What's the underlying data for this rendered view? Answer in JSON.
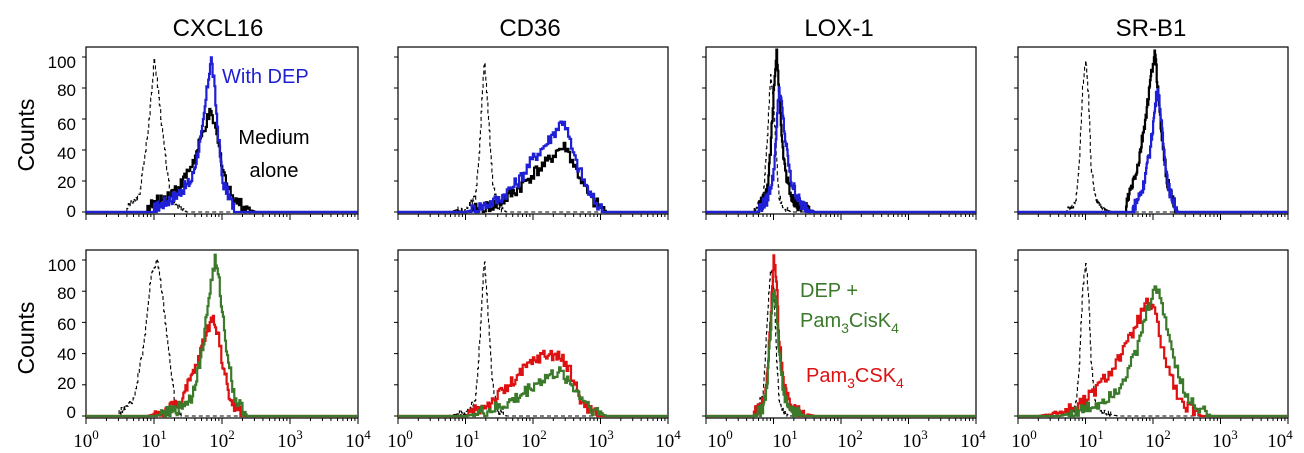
{
  "figure": {
    "column_titles": [
      "CXCL16",
      "CD36",
      "LOX-1",
      "SR-B1"
    ],
    "row_ylabels": [
      "Counts",
      "Counts"
    ],
    "x_tick_labels": [
      {
        "base": "10",
        "exp": "0"
      },
      {
        "base": "10",
        "exp": "1"
      },
      {
        "base": "10",
        "exp": "2"
      },
      {
        "base": "10",
        "exp": "3"
      },
      {
        "base": "10",
        "exp": "4"
      }
    ],
    "y_tick_labels": [
      "100",
      "80",
      "60",
      "40",
      "20",
      "0"
    ]
  },
  "annotations": {
    "with_dep": "With DEP",
    "medium_line1": "Medium",
    "medium_line2": "alone",
    "dep_line1": "DEP +",
    "pam3cisk4": {
      "a": "Pam",
      "b": "3",
      "c": "CisK",
      "d": "4"
    },
    "pam3csk4": {
      "a": "Pam",
      "b": "3",
      "c": "CSK",
      "d": "4"
    }
  },
  "colors": {
    "isotype": "#000000",
    "medium": "#000000",
    "dep": "#1f1fd6",
    "pam3csk4": "#dd1111",
    "dep_pam3cisk4": "#3a7a2a"
  },
  "chart_data": [
    {
      "type": "line",
      "row": 0,
      "col": 0,
      "title": "CXCL16",
      "ylabel": "Counts",
      "x_scale": "log",
      "xlim": [
        1,
        10000
      ],
      "ylim": [
        0,
        100
      ],
      "series": [
        {
          "key": "isotype",
          "style": "dashed",
          "x": [
            4,
            6,
            8,
            10,
            11,
            13,
            16,
            20,
            30
          ],
          "y": [
            3,
            10,
            50,
            98,
            85,
            55,
            20,
            5,
            0
          ]
        },
        {
          "key": "medium",
          "x": [
            8,
            15,
            25,
            40,
            55,
            65,
            75,
            90,
            120,
            200,
            300
          ],
          "y": [
            3,
            10,
            18,
            35,
            55,
            63,
            58,
            40,
            15,
            3,
            0
          ]
        },
        {
          "key": "dep",
          "x": [
            10,
            20,
            35,
            50,
            60,
            68,
            75,
            85,
            100,
            150
          ],
          "y": [
            2,
            10,
            20,
            50,
            80,
            100,
            85,
            55,
            20,
            2
          ]
        }
      ]
    },
    {
      "type": "line",
      "row": 0,
      "col": 1,
      "title": "CD36",
      "xlim": [
        1,
        10000
      ],
      "ylim": [
        0,
        100
      ],
      "series": [
        {
          "key": "isotype",
          "style": "dashed",
          "x": [
            5,
            10,
            14,
            16,
            18,
            19,
            21,
            25,
            30,
            40
          ],
          "y": [
            0,
            2,
            10,
            40,
            85,
            98,
            70,
            20,
            3,
            0
          ]
        },
        {
          "key": "medium",
          "x": [
            10,
            30,
            60,
            100,
            160,
            230,
            300,
            400,
            700,
            1200
          ],
          "y": [
            0,
            5,
            15,
            25,
            32,
            40,
            42,
            30,
            8,
            0
          ]
        },
        {
          "key": "dep",
          "x": [
            10,
            30,
            60,
            100,
            160,
            230,
            280,
            400,
            700,
            1100
          ],
          "y": [
            0,
            8,
            20,
            35,
            45,
            55,
            60,
            35,
            10,
            0
          ]
        }
      ]
    },
    {
      "type": "line",
      "row": 0,
      "col": 2,
      "title": "LOX-1",
      "xlim": [
        1,
        10000
      ],
      "ylim": [
        0,
        100
      ],
      "series": [
        {
          "key": "isotype",
          "style": "dashed",
          "x": [
            5,
            7,
            8,
            9,
            10,
            11,
            12,
            14,
            18,
            25
          ],
          "y": [
            0,
            10,
            45,
            90,
            70,
            35,
            10,
            3,
            0,
            0
          ]
        },
        {
          "key": "medium",
          "x": [
            6,
            8,
            9,
            10,
            11,
            12,
            13,
            15,
            18,
            25,
            40
          ],
          "y": [
            3,
            12,
            40,
            80,
            103,
            80,
            50,
            25,
            10,
            3,
            0
          ]
        },
        {
          "key": "dep",
          "x": [
            6,
            8,
            10,
            11,
            12,
            13,
            15,
            18,
            25,
            40
          ],
          "y": [
            2,
            8,
            25,
            55,
            80,
            70,
            45,
            20,
            5,
            0
          ]
        }
      ]
    },
    {
      "type": "line",
      "row": 0,
      "col": 3,
      "title": "SR-B1",
      "xlim": [
        1,
        10000
      ],
      "ylim": [
        0,
        100
      ],
      "series": [
        {
          "key": "isotype",
          "style": "dashed",
          "x": [
            5,
            7,
            8,
            9,
            10,
            11,
            12,
            14,
            18,
            25
          ],
          "y": [
            0,
            5,
            30,
            80,
            98,
            75,
            30,
            8,
            2,
            0
          ]
        },
        {
          "key": "medium",
          "x": [
            40,
            60,
            80,
            95,
            105,
            115,
            130,
            160,
            220
          ],
          "y": [
            5,
            30,
            65,
            90,
            103,
            85,
            55,
            20,
            0
          ]
        },
        {
          "key": "dep",
          "x": [
            50,
            70,
            90,
            105,
            115,
            125,
            140,
            170,
            230
          ],
          "y": [
            2,
            15,
            40,
            65,
            80,
            70,
            45,
            15,
            0
          ]
        }
      ]
    },
    {
      "type": "line",
      "row": 1,
      "col": 0,
      "title": "",
      "ylabel": "Counts",
      "xlim": [
        1,
        10000
      ],
      "ylim": [
        0,
        100
      ],
      "series": [
        {
          "key": "isotype",
          "style": "dashed",
          "x": [
            3,
            5,
            7,
            9,
            11,
            13,
            16,
            20,
            25
          ],
          "y": [
            2,
            10,
            45,
            90,
            100,
            80,
            45,
            10,
            0
          ]
        },
        {
          "key": "pam3csk4",
          "x": [
            8,
            15,
            25,
            40,
            55,
            70,
            85,
            100,
            130,
            200
          ],
          "y": [
            0,
            3,
            10,
            30,
            50,
            63,
            55,
            35,
            10,
            0
          ]
        },
        {
          "key": "dep_pam3cisk4",
          "x": [
            10,
            20,
            35,
            50,
            65,
            78,
            90,
            110,
            150,
            230
          ],
          "y": [
            0,
            3,
            12,
            40,
            80,
            100,
            85,
            50,
            12,
            0
          ]
        }
      ]
    },
    {
      "type": "line",
      "row": 1,
      "col": 1,
      "title": "",
      "xlim": [
        1,
        10000
      ],
      "ylim": [
        0,
        100
      ],
      "series": [
        {
          "key": "isotype",
          "style": "dashed",
          "x": [
            5,
            10,
            14,
            16,
            18,
            19,
            21,
            25,
            30,
            40
          ],
          "y": [
            0,
            2,
            10,
            45,
            88,
            100,
            70,
            20,
            3,
            0
          ]
        },
        {
          "key": "pam3csk4",
          "x": [
            10,
            25,
            50,
            80,
            120,
            180,
            250,
            350,
            500,
            900
          ],
          "y": [
            0,
            10,
            22,
            32,
            38,
            40,
            38,
            28,
            10,
            0
          ]
        },
        {
          "key": "dep_pam3cisk4",
          "x": [
            10,
            30,
            60,
            100,
            160,
            230,
            300,
            450,
            800,
            1200
          ],
          "y": [
            0,
            5,
            12,
            20,
            25,
            28,
            25,
            15,
            3,
            0
          ]
        }
      ]
    },
    {
      "type": "line",
      "row": 1,
      "col": 2,
      "title": "",
      "xlim": [
        1,
        10000
      ],
      "ylim": [
        0,
        100
      ],
      "series": [
        {
          "key": "isotype",
          "style": "dashed",
          "x": [
            5,
            7,
            8,
            9,
            10,
            11,
            12,
            14,
            18
          ],
          "y": [
            0,
            15,
            60,
            95,
            85,
            40,
            10,
            2,
            0
          ]
        },
        {
          "key": "pam3csk4",
          "x": [
            5,
            7,
            8,
            9,
            10,
            11,
            12,
            14,
            18,
            25,
            40
          ],
          "y": [
            2,
            8,
            25,
            65,
            103,
            85,
            50,
            20,
            5,
            2,
            0
          ]
        },
        {
          "key": "dep_pam3cisk4",
          "x": [
            5,
            7,
            8,
            9,
            10,
            11,
            12,
            14,
            18,
            30
          ],
          "y": [
            0,
            5,
            20,
            55,
            80,
            70,
            40,
            15,
            3,
            0
          ]
        }
      ]
    },
    {
      "type": "line",
      "row": 1,
      "col": 3,
      "title": "",
      "xlim": [
        1,
        10000
      ],
      "ylim": [
        0,
        100
      ],
      "series": [
        {
          "key": "isotype",
          "style": "dashed",
          "x": [
            5,
            7,
            8,
            9,
            10,
            11,
            12,
            14,
            18,
            30
          ],
          "y": [
            0,
            5,
            30,
            80,
            98,
            80,
            35,
            8,
            2,
            0
          ]
        },
        {
          "key": "pam3csk4",
          "x": [
            2,
            5,
            10,
            20,
            40,
            60,
            80,
            100,
            150,
            250,
            500
          ],
          "y": [
            0,
            3,
            10,
            25,
            45,
            62,
            72,
            68,
            35,
            8,
            0
          ]
        },
        {
          "key": "dep_pam3cisk4",
          "x": [
            4,
            8,
            15,
            30,
            55,
            80,
            100,
            130,
            180,
            300,
            700
          ],
          "y": [
            0,
            3,
            8,
            18,
            40,
            68,
            82,
            75,
            45,
            12,
            0
          ]
        }
      ]
    }
  ]
}
